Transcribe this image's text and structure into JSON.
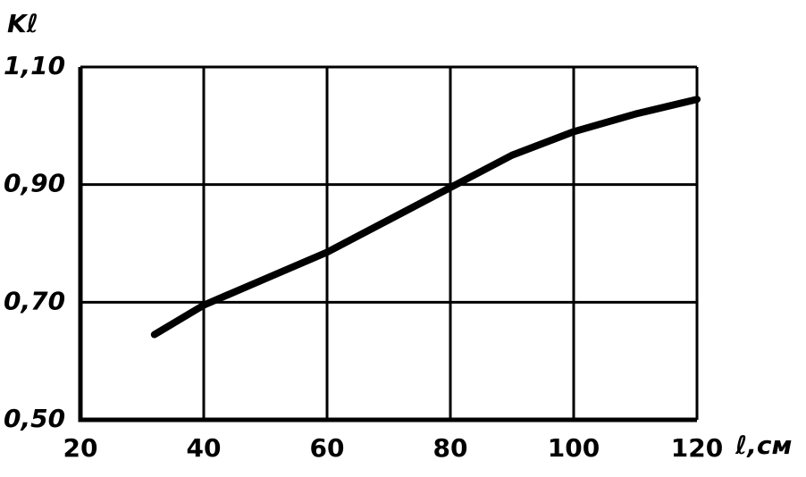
{
  "chart_data": {
    "type": "line",
    "y_label": "Kℓ",
    "x_label": "ℓ,см",
    "x": [
      32,
      40,
      50,
      60,
      70,
      80,
      90,
      100,
      110,
      120
    ],
    "values": [
      0.645,
      0.695,
      0.74,
      0.785,
      0.84,
      0.895,
      0.95,
      0.99,
      1.02,
      1.045
    ],
    "color": "#000000",
    "xlim": [
      20,
      120
    ],
    "xticks": [
      20,
      40,
      60,
      80,
      100,
      120
    ],
    "ylim": [
      0.5,
      1.1
    ],
    "yticks": [
      {
        "value": 0.5,
        "label": "0,50"
      },
      {
        "value": 0.7,
        "label": "0,70"
      },
      {
        "value": 0.9,
        "label": "0,90"
      },
      {
        "value": 1.1,
        "label": "1,10"
      }
    ],
    "grid": true
  }
}
